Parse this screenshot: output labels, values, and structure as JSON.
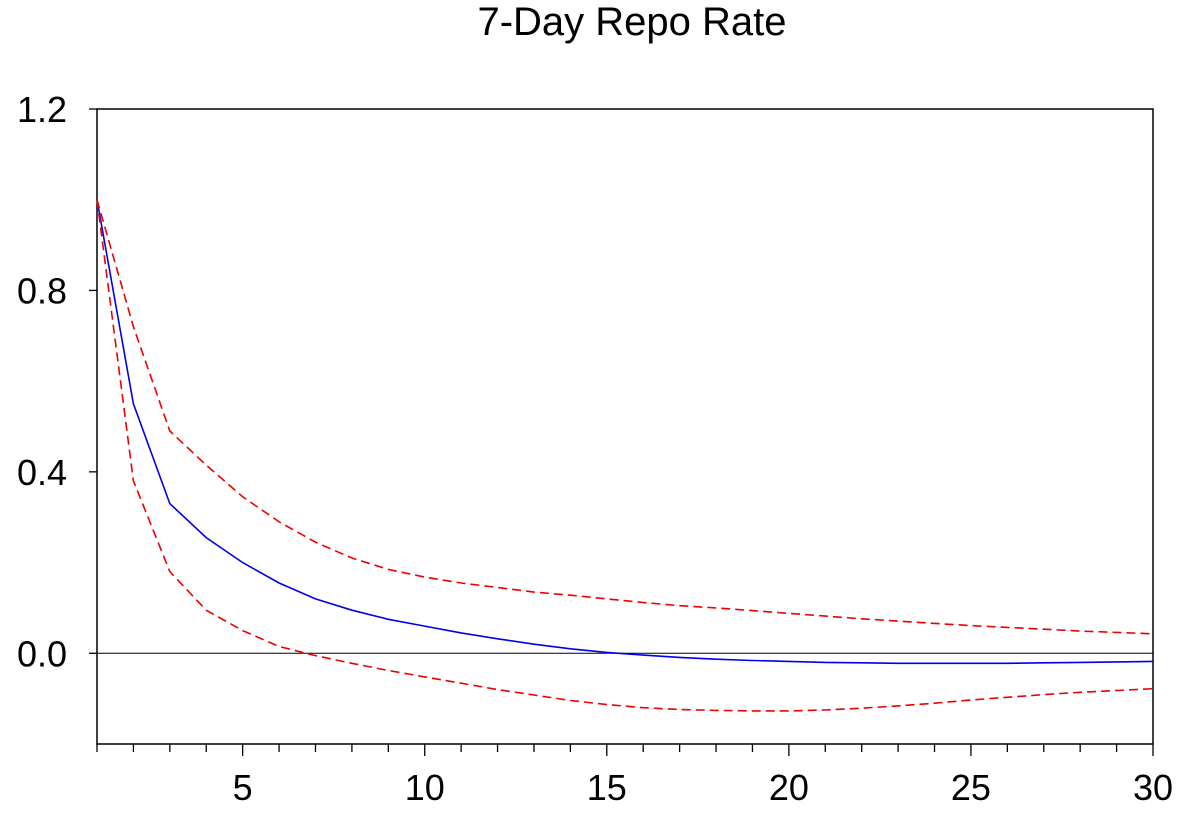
{
  "chart_data": {
    "type": "line",
    "title": "7-Day Repo Rate",
    "xlabel": "",
    "ylabel": "",
    "xlim": [
      1,
      30
    ],
    "ylim": [
      -0.2,
      1.2
    ],
    "grid": false,
    "legend": "none",
    "x_ticks": [
      5,
      10,
      15,
      20,
      25,
      30
    ],
    "y_ticks": [
      0.0,
      0.4,
      0.8,
      1.2
    ],
    "y_tick_labels": [
      "0.0",
      "0.4",
      "0.8",
      "1.2"
    ],
    "zero_line": true,
    "x": [
      1,
      2,
      3,
      4,
      5,
      6,
      7,
      8,
      9,
      10,
      11,
      12,
      13,
      14,
      15,
      16,
      17,
      18,
      19,
      20,
      21,
      22,
      23,
      24,
      25,
      26,
      27,
      28,
      29,
      30
    ],
    "series": [
      {
        "style": "solid",
        "color": "#0000ee",
        "values": [
          1.0,
          0.55,
          0.33,
          0.255,
          0.2,
          0.155,
          0.12,
          0.095,
          0.075,
          0.06,
          0.045,
          0.032,
          0.02,
          0.01,
          0.002,
          -0.004,
          -0.009,
          -0.013,
          -0.016,
          -0.018,
          -0.02,
          -0.021,
          -0.022,
          -0.022,
          -0.022,
          -0.022,
          -0.021,
          -0.02,
          -0.019,
          -0.018
        ]
      },
      {
        "style": "dashed",
        "color": "#ee0000",
        "values": [
          1.0,
          0.72,
          0.49,
          0.415,
          0.345,
          0.29,
          0.245,
          0.21,
          0.185,
          0.168,
          0.155,
          0.145,
          0.135,
          0.128,
          0.12,
          0.112,
          0.105,
          0.1,
          0.094,
          0.088,
          0.082,
          0.076,
          0.071,
          0.066,
          0.061,
          0.057,
          0.053,
          0.049,
          0.046,
          0.043
        ]
      },
      {
        "style": "dashed",
        "color": "#ee0000",
        "values": [
          1.0,
          0.38,
          0.18,
          0.095,
          0.05,
          0.015,
          -0.005,
          -0.022,
          -0.038,
          -0.052,
          -0.066,
          -0.08,
          -0.092,
          -0.104,
          -0.113,
          -0.12,
          -0.124,
          -0.126,
          -0.127,
          -0.127,
          -0.125,
          -0.121,
          -0.116,
          -0.11,
          -0.103,
          -0.097,
          -0.091,
          -0.086,
          -0.082,
          -0.078
        ]
      }
    ]
  }
}
